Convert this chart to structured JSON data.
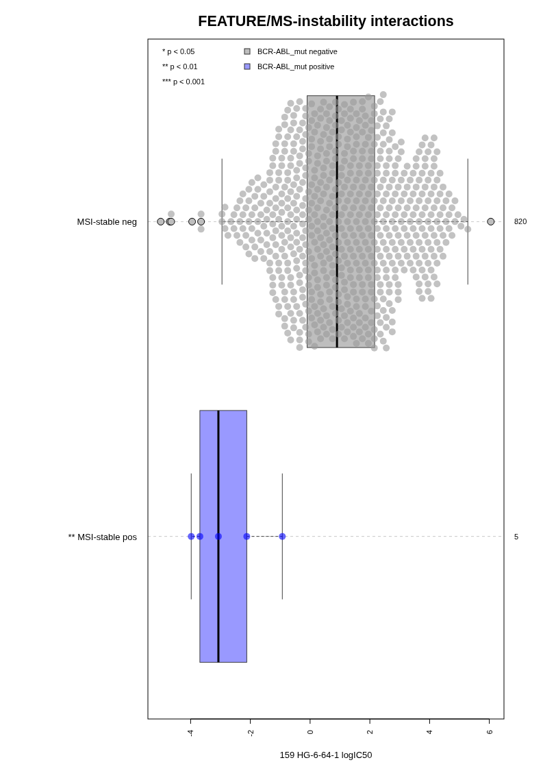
{
  "chart_data": {
    "type": "box",
    "title": "FEATURE/MS-instability interactions",
    "xlabel": "159 HG-6-64-1 logIC50",
    "orientation": "horizontal",
    "categories": [
      "MSI-stable neg",
      "** MSI-stable pos"
    ],
    "y2_categories": [
      "820",
      "5"
    ],
    "xlim": [
      -5.43,
      6.49
    ],
    "xticks": [
      -4,
      -2,
      0,
      2,
      4,
      6
    ],
    "grid": "y",
    "legend": "top left",
    "annotations": [
      "* p < 0.05",
      "** p < 0.01",
      "*** p < 0.001"
    ],
    "series": [
      {
        "name": "BCR-ABL_mut negative",
        "color": "#bebebe",
        "boxes": [
          {
            "low": -2.95,
            "q1": -0.1,
            "median": 0.9,
            "q3": 2.16,
            "high": 5.28,
            "outliers": [
              -5,
              -4.7,
              -4.65,
              -3.95,
              -3.65,
              6.05
            ]
          },
          null
        ]
      },
      {
        "name": "BCR-ABL_mut positive",
        "color": "#9999ff",
        "boxes": [
          null,
          {
            "low": -3.98,
            "q1": -3.69,
            "median": -3.07,
            "q3": -2.12,
            "high": -0.93
          }
        ]
      },
      {
        "type": "scatter",
        "color": "#999999",
        "x": [
          "MSI-stable neg",
          "MSI-stable neg",
          "MSI-stable neg",
          "MSI-stable neg",
          "MSI-stable neg",
          "MSI-stable neg",
          "MSI-stable neg",
          "MSI-stable neg",
          "MSI-stable neg",
          "MSI-stable neg",
          "MSI-stable neg",
          "MSI-stable neg",
          "MSI-stable neg",
          "MSI-stable neg",
          "MSI-stable neg",
          "MSI-stable neg",
          "MSI-stable neg",
          "MSI-stable neg",
          "MSI-stable neg",
          "MSI-stable neg",
          "MSI-stable neg",
          "MSI-stable neg",
          "MSI-stable neg",
          "MSI-stable neg",
          "MSI-stable neg",
          "MSI-stable neg",
          "MSI-stable neg",
          "MSI-stable neg",
          "MSI-stable neg",
          "MSI-stable neg",
          "MSI-stable neg",
          "MSI-stable neg",
          "MSI-stable neg",
          "MSI-stable neg",
          "MSI-stable neg",
          "MSI-stable neg",
          "MSI-stable neg",
          "MSI-stable neg",
          "MSI-stable neg",
          "MSI-stable neg",
          "MSI-stable neg",
          "MSI-stable neg",
          "MSI-stable neg",
          "MSI-stable neg",
          "MSI-stable neg",
          "MSI-stable neg",
          "MSI-stable neg",
          "MSI-stable neg",
          "MSI-stable neg",
          "MSI-stable neg",
          "MSI-stable neg",
          "MSI-stable neg",
          "MSI-stable neg",
          "MSI-stable neg",
          "MSI-stable neg",
          "MSI-stable neg",
          "MSI-stable neg",
          "MSI-stable neg",
          "MSI-stable neg",
          "MSI-stable neg",
          "MSI-stable neg",
          "MSI-stable neg",
          "MSI-stable neg",
          "MSI-stable neg",
          "MSI-stable neg",
          "MSI-stable neg",
          "MSI-stable neg",
          "MSI-stable neg",
          "MSI-stable neg",
          "MSI-stable neg",
          "MSI-stable neg",
          "MSI-stable neg",
          "MSI-stable neg",
          "MSI-stable neg",
          "MSI-stable neg",
          "MSI-stable neg",
          "MSI-stable neg",
          "MSI-stable neg",
          "MSI-stable neg",
          "MSI-stable neg",
          "MSI-stable neg",
          "MSI-stable neg",
          "MSI-stable neg",
          "MSI-stable neg",
          "MSI-stable neg",
          "MSI-stable neg",
          "MSI-stable neg",
          "MSI-stable neg",
          "MSI-stable neg",
          "MSI-stable neg",
          "MSI-stable neg",
          "MSI-stable neg",
          "MSI-stable neg",
          "MSI-stable neg",
          "MSI-stable neg",
          "MSI-stable neg",
          "MSI-stable neg",
          "MSI-stable neg",
          "MSI-stable neg",
          "MSI-stable neg",
          "MSI-stable neg",
          "MSI-stable neg",
          "MSI-stable neg",
          "MSI-stable neg",
          "MSI-stable neg",
          "MSI-stable neg",
          "MSI-stable neg",
          "MSI-stable neg",
          "MSI-stable neg",
          "MSI-stable neg",
          "MSI-stable neg",
          "MSI-stable neg",
          "MSI-stable neg",
          "MSI-stable neg",
          "MSI-stable neg",
          "MSI-stable neg",
          "MSI-stable neg",
          "MSI-stable neg",
          "MSI-stable neg",
          "MSI-stable neg",
          "MSI-stable neg",
          "MSI-stable neg",
          "MSI-stable neg",
          "MSI-stable neg",
          "MSI-stable neg",
          "MSI-stable neg",
          "MSI-stable neg",
          "MSI-stable neg",
          "MSI-stable neg",
          "MSI-stable neg",
          "MSI-stable neg",
          "MSI-stable neg",
          "MSI-stable neg",
          "MSI-stable neg",
          "MSI-stable neg",
          "MSI-stable neg",
          "MSI-stable neg",
          "MSI-stable neg",
          "MSI-stable neg",
          "MSI-stable neg",
          "MSI-stable neg",
          "MSI-stable neg",
          "MSI-stable neg",
          "MSI-stable neg",
          "MSI-stable neg",
          "MSI-stable neg",
          "MSI-stable neg",
          "MSI-stable neg",
          "MSI-stable neg",
          "MSI-stable neg",
          "MSI-stable neg",
          "MSI-stable neg",
          "MSI-stable neg",
          "MSI-stable neg",
          "MSI-stable neg",
          "MSI-stable neg",
          "MSI-stable neg",
          "MSI-stable neg",
          "MSI-stable neg",
          "MSI-stable neg",
          "MSI-stable neg",
          "MSI-stable neg",
          "MSI-stable neg",
          "MSI-stable neg",
          "MSI-stable neg",
          "MSI-stable neg",
          "MSI-stable neg",
          "MSI-stable neg",
          "MSI-stable neg",
          "MSI-stable neg",
          "MSI-stable neg",
          "MSI-stable neg",
          "MSI-stable neg",
          "MSI-stable neg",
          "MSI-stable neg",
          "MSI-stable neg",
          "MSI-stable neg",
          "MSI-stable neg",
          "MSI-stable neg",
          "MSI-stable neg",
          "MSI-stable neg",
          "MSI-stable neg",
          "MSI-stable neg",
          "MSI-stable neg",
          "MSI-stable neg",
          "MSI-stable neg",
          "MSI-stable neg",
          "MSI-stable neg",
          "MSI-stable neg",
          "MSI-stable neg",
          "MSI-stable neg",
          "MSI-stable neg",
          "MSI-stable neg",
          "MSI-stable neg",
          "MSI-stable neg",
          "MSI-stable neg",
          "MSI-stable neg",
          "MSI-stable neg",
          "MSI-stable neg",
          "MSI-stable neg",
          "MSI-stable neg",
          "MSI-stable neg",
          "MSI-stable neg",
          "MSI-stable neg",
          "MSI-stable neg",
          "MSI-stable neg",
          "MSI-stable neg",
          "MSI-stable neg",
          "MSI-stable neg",
          "MSI-stable neg",
          "MSI-stable neg",
          "MSI-stable neg",
          "MSI-stable neg",
          "MSI-stable neg",
          "MSI-stable neg",
          "MSI-stable neg",
          "MSI-stable neg",
          "MSI-stable neg",
          "MSI-stable neg",
          "MSI-stable neg",
          "MSI-stable neg",
          "MSI-stable neg",
          "MSI-stable neg",
          "MSI-stable neg",
          "MSI-stable neg",
          "MSI-stable neg",
          "MSI-stable neg",
          "MSI-stable neg",
          "MSI-stable neg",
          "MSI-stable neg",
          "MSI-stable neg",
          "MSI-stable neg",
          "MSI-stable neg",
          "MSI-stable neg",
          "MSI-stable neg",
          "MSI-stable neg",
          "MSI-stable neg",
          "MSI-stable neg",
          "MSI-stable neg",
          "MSI-stable neg",
          "MSI-stable neg",
          "MSI-stable neg",
          "MSI-stable neg",
          "MSI-stable neg",
          "MSI-stable neg",
          "MSI-stable neg",
          "MSI-stable neg",
          "MSI-stable neg",
          "MSI-stable neg",
          "MSI-stable neg",
          "MSI-stable neg",
          "MSI-stable neg",
          "MSI-stable neg",
          "MSI-stable neg",
          "MSI-stable neg",
          "MSI-stable neg",
          "MSI-stable neg",
          "MSI-stable neg",
          "MSI-stable neg",
          "MSI-stable neg",
          "MSI-stable neg",
          "MSI-stable neg",
          "MSI-stable neg",
          "MSI-stable neg",
          "MSI-stable neg",
          "MSI-stable neg",
          "MSI-stable neg",
          "MSI-stable neg",
          "MSI-stable neg",
          "MSI-stable neg",
          "MSI-stable neg",
          "MSI-stable neg",
          "MSI-stable neg",
          "MSI-stable neg",
          "MSI-stable neg",
          "MSI-stable neg",
          "MSI-stable neg",
          "MSI-stable neg",
          "MSI-stable neg",
          "MSI-stable neg",
          "MSI-stable neg",
          "MSI-stable neg",
          "MSI-stable neg",
          "MSI-stable neg",
          "MSI-stable neg",
          "MSI-stable neg",
          "MSI-stable neg",
          "MSI-stable neg",
          "MSI-stable neg",
          "MSI-stable neg",
          "MSI-stable neg",
          "MSI-stable neg",
          "MSI-stable neg",
          "MSI-stable neg",
          "MSI-stable neg",
          "MSI-stable neg",
          "MSI-stable neg",
          "MSI-stable neg",
          "MSI-stable neg",
          "MSI-stable neg",
          "MSI-stable neg",
          "MSI-stable neg",
          "MSI-stable neg",
          "MSI-stable neg",
          "MSI-stable neg",
          "MSI-stable neg",
          "MSI-stable neg",
          "MSI-stable neg",
          "MSI-stable neg",
          "MSI-stable neg",
          "MSI-stable neg",
          "MSI-stable neg",
          "MSI-stable neg",
          "MSI-stable neg",
          "MSI-stable neg",
          "MSI-stable neg",
          "MSI-stable neg",
          "MSI-stable neg",
          "MSI-stable neg",
          "MSI-stable neg",
          "MSI-stable neg",
          "MSI-stable neg",
          "MSI-stable neg",
          "MSI-stable neg",
          "MSI-stable neg",
          "MSI-stable neg",
          "MSI-stable neg",
          "MSI-stable neg",
          "MSI-stable neg",
          "MSI-stable neg",
          "MSI-stable neg",
          "MSI-stable neg",
          "MSI-stable neg",
          "MSI-stable neg",
          "MSI-stable neg",
          "MSI-stable neg",
          "MSI-stable neg",
          "MSI-stable neg",
          "MSI-stable neg",
          "MSI-stable neg",
          "MSI-stable neg",
          "MSI-stable neg",
          "MSI-stable neg",
          "MSI-stable neg",
          "MSI-stable neg",
          "MSI-stable neg",
          "MSI-stable neg",
          "MSI-stable neg",
          "MSI-stable neg",
          "MSI-stable neg",
          "MSI-stable neg",
          "MSI-stable neg",
          "MSI-stable neg",
          "MSI-stable neg",
          "MSI-stable neg",
          "MSI-stable neg",
          "MSI-stable neg",
          "MSI-stable neg",
          "MSI-stable neg",
          "MSI-stable neg",
          "MSI-stable neg",
          "MSI-stable neg",
          "MSI-stable neg",
          "MSI-stable neg",
          "MSI-stable neg",
          "MSI-stable neg",
          "MSI-stable neg",
          "MSI-stable neg",
          "MSI-stable neg",
          "MSI-stable neg",
          "MSI-stable neg",
          "MSI-stable neg",
          "MSI-stable neg",
          "MSI-stable neg",
          "MSI-stable neg",
          "MSI-stable neg",
          "MSI-stable neg",
          "MSI-stable neg",
          "MSI-stable neg",
          "MSI-stable neg",
          "MSI-stable neg",
          "MSI-stable neg",
          "MSI-stable neg",
          "MSI-stable neg",
          "MSI-stable neg",
          "MSI-stable neg",
          "MSI-stable neg",
          "MSI-stable neg",
          "MSI-stable neg",
          "MSI-stable neg",
          "MSI-stable neg",
          "MSI-stable neg",
          "MSI-stable neg",
          "MSI-stable neg",
          "MSI-stable neg",
          "MSI-stable neg",
          "MSI-stable neg",
          "MSI-stable neg",
          "MSI-stable neg",
          "MSI-stable neg",
          "MSI-stable neg",
          "MSI-stable neg",
          "MSI-stable neg",
          "MSI-stable neg",
          "MSI-stable neg",
          "MSI-stable neg",
          "MSI-stable neg",
          "MSI-stable neg",
          "MSI-stable neg",
          "MSI-stable neg",
          "MSI-stable neg",
          "MSI-stable neg",
          "MSI-stable neg",
          "MSI-stable neg",
          "MSI-stable neg",
          "MSI-stable neg",
          "MSI-stable neg",
          "MSI-stable neg",
          "MSI-stable neg",
          "MSI-stable neg",
          "MSI-stable neg",
          "MSI-stable neg",
          "MSI-stable neg",
          "MSI-stable neg",
          "MSI-stable neg",
          "MSI-stable neg",
          "MSI-stable neg",
          "MSI-stable neg",
          "MSI-stable neg",
          "MSI-stable neg",
          "MSI-stable neg",
          "MSI-stable neg",
          "MSI-stable neg",
          "MSI-stable neg",
          "MSI-stable neg",
          "MSI-stable neg",
          "MSI-stable neg",
          "MSI-stable neg",
          "MSI-stable neg",
          "MSI-stable neg",
          "MSI-stable neg",
          "MSI-stable neg",
          "MSI-stable neg",
          "MSI-stable neg",
          "MSI-stable neg",
          "MSI-stable neg",
          "MSI-stable neg",
          "MSI-stable neg",
          "MSI-stable neg",
          "MSI-stable neg",
          "MSI-stable neg",
          "MSI-stable neg",
          "MSI-stable neg",
          "MSI-stable neg",
          "MSI-stable neg",
          "MSI-stable neg",
          "MSI-stable neg",
          "MSI-stable neg",
          "MSI-stable neg",
          "MSI-stable neg",
          "MSI-stable neg",
          "MSI-stable neg",
          "MSI-stable neg",
          "MSI-stable neg",
          "MSI-stable neg",
          "MSI-stable neg",
          "MSI-stable neg",
          "MSI-stable neg",
          "MSI-stable neg",
          "MSI-stable neg",
          "MSI-stable neg",
          "MSI-stable neg",
          "MSI-stable neg",
          "MSI-stable neg",
          "MSI-stable neg",
          "MSI-stable neg",
          "MSI-stable neg",
          "MSI-stable neg",
          "MSI-stable neg",
          "MSI-stable neg",
          "MSI-stable neg",
          "MSI-stable neg",
          "MSI-stable neg",
          "MSI-stable neg",
          "MSI-stable neg",
          "MSI-stable neg",
          "MSI-stable neg",
          "MSI-stable neg",
          "MSI-stable neg",
          "MSI-stable neg",
          "MSI-stable neg",
          "MSI-stable neg",
          "MSI-stable neg",
          "MSI-stable neg",
          "MSI-stable neg",
          "MSI-stable neg",
          "MSI-stable neg",
          "MSI-stable neg",
          "MSI-stable neg",
          "MSI-stable neg",
          "MSI-stable neg",
          "MSI-stable neg",
          "MSI-stable neg",
          "MSI-stable neg",
          "MSI-stable neg",
          "MSI-stable neg",
          "MSI-stable neg",
          "MSI-stable neg",
          "MSI-stable neg",
          "MSI-stable neg",
          "MSI-stable neg",
          "MSI-stable neg",
          "MSI-stable neg",
          "MSI-stable neg",
          "MSI-stable neg",
          "MSI-stable neg",
          "MSI-stable neg",
          "MSI-stable neg",
          "MSI-stable neg",
          "MSI-stable neg",
          "MSI-stable neg",
          "MSI-stable neg",
          "MSI-stable neg",
          "MSI-stable neg",
          "MSI-stable neg",
          "MSI-stable neg",
          "MSI-stable neg",
          "MSI-stable neg",
          "MSI-stable neg",
          "MSI-stable neg",
          "MSI-stable neg",
          "MSI-stable neg",
          "MSI-stable neg",
          "MSI-stable neg",
          "MSI-stable neg",
          "MSI-stable neg",
          "MSI-stable neg",
          "MSI-stable neg",
          "MSI-stable neg",
          "MSI-stable neg",
          "MSI-stable neg",
          "MSI-stable neg",
          "MSI-stable neg",
          "MSI-stable neg",
          "MSI-stable neg",
          "MSI-stable neg",
          "MSI-stable neg",
          "MSI-stable neg",
          "MSI-stable neg",
          "MSI-stable neg",
          "MSI-stable neg",
          "MSI-stable neg",
          "MSI-stable neg",
          "MSI-stable neg",
          "MSI-stable neg",
          "MSI-stable neg",
          "MSI-stable neg",
          "MSI-stable neg",
          "MSI-stable neg",
          "MSI-stable neg",
          "MSI-stable neg",
          "MSI-stable neg",
          "MSI-stable neg",
          "MSI-stable neg",
          "MSI-stable neg",
          "MSI-stable neg",
          "MSI-stable neg",
          "MSI-stable neg",
          "MSI-stable neg",
          "MSI-stable neg",
          "MSI-stable neg",
          "MSI-stable neg",
          "MSI-stable neg",
          "MSI-stable neg",
          "MSI-stable neg",
          "MSI-stable neg",
          "MSI-stable neg",
          "MSI-stable neg",
          "MSI-stable neg",
          "MSI-stable neg",
          "MSI-stable neg",
          "MSI-stable neg",
          "MSI-stable neg",
          "MSI-stable neg",
          "MSI-stable neg",
          "MSI-stable neg",
          "MSI-stable neg",
          "MSI-stable neg",
          "MSI-stable neg",
          "MSI-stable neg",
          "MSI-stable neg",
          "MSI-stable neg",
          "MSI-stable neg",
          "MSI-stable neg",
          "MSI-stable neg",
          "MSI-stable neg",
          "MSI-stable neg",
          "MSI-stable neg",
          "MSI-stable neg",
          "MSI-stable neg",
          "MSI-stable neg",
          "MSI-stable neg",
          "MSI-stable neg",
          "MSI-stable neg",
          "MSI-stable neg",
          "MSI-stable neg",
          "MSI-stable neg",
          "MSI-stable neg",
          "MSI-stable neg",
          "MSI-stable neg",
          "MSI-stable neg",
          "MSI-stable neg",
          "MSI-stable neg",
          "MSI-stable neg",
          "MSI-stable neg",
          "MSI-stable neg",
          "MSI-stable neg",
          "MSI-stable neg",
          "MSI-stable neg",
          "MSI-stable neg",
          "MSI-stable neg",
          "MSI-stable neg",
          "MSI-stable neg",
          "MSI-stable neg",
          "MSI-stable neg",
          "MSI-stable neg",
          "MSI-stable neg",
          "MSI-stable neg",
          "MSI-stable neg",
          "MSI-stable neg",
          "MSI-stable neg",
          "MSI-stable neg",
          "MSI-stable neg",
          "MSI-stable neg",
          "MSI-stable neg",
          "MSI-stable neg",
          "MSI-stable neg",
          "MSI-stable neg",
          "MSI-stable neg",
          "MSI-stable neg",
          "MSI-stable neg",
          "MSI-stable neg",
          "MSI-stable neg",
          "MSI-stable neg",
          "MSI-stable neg",
          "MSI-stable neg",
          "MSI-stable neg",
          "MSI-stable neg",
          "MSI-stable neg",
          "MSI-stable neg",
          "MSI-stable neg",
          "MSI-stable neg",
          "MSI-stable neg",
          "MSI-stable neg",
          "MSI-stable neg",
          "MSI-stable neg",
          "MSI-stable neg",
          "MSI-stable neg",
          "MSI-stable neg",
          "MSI-stable neg",
          "MSI-stable neg",
          "MSI-stable neg",
          "MSI-stable neg",
          "MSI-stable neg"
        ],
        "values": [
          -4.65,
          -3.65,
          -3.65,
          -2.95,
          -2.95,
          -2.85,
          -2.85,
          -2.75,
          -2.65,
          -2.55,
          -2.55,
          -2.45,
          -2.45,
          -2.35,
          -2.35,
          -2.35,
          -2.25,
          -2.25,
          -2.25,
          -2.15,
          -2.15,
          -2.15,
          -2.05,
          -2.05,
          -2.05,
          -2.05,
          -1.95,
          -1.95,
          -1.95,
          -1.95,
          -1.85,
          -1.85,
          -1.85,
          -1.85,
          -1.75,
          -1.75,
          -1.75,
          -1.75,
          -1.65,
          -1.65,
          -1.65,
          -1.65,
          -1.55,
          -1.55,
          -1.55,
          -1.55,
          -1.45,
          -1.45,
          -1.45,
          -1.45,
          -1.35,
          -1.35,
          -1.35,
          -1.35,
          -1.35,
          -1.35,
          -1.35,
          -1.25,
          -1.25,
          -1.25,
          -1.25,
          -1.25,
          -1.25,
          -1.25,
          -1.25,
          -1.15,
          -1.15,
          -1.15,
          -1.15,
          -1.15,
          -1.15,
          -1.15,
          -1.15,
          -1.15,
          -1.05,
          -1.05,
          -1.05,
          -1.05,
          -1.05,
          -1.05,
          -1.05,
          -1.05,
          -1.05,
          -0.95,
          -0.95,
          -0.95,
          -0.95,
          -0.95,
          -0.95,
          -0.95,
          -0.95,
          -0.95,
          -0.95,
          -0.85,
          -0.85,
          -0.85,
          -0.85,
          -0.85,
          -0.85,
          -0.85,
          -0.85,
          -0.85,
          -0.85,
          -0.85,
          -0.75,
          -0.75,
          -0.75,
          -0.75,
          -0.75,
          -0.75,
          -0.75,
          -0.75,
          -0.75,
          -0.75,
          -0.75,
          -0.75,
          -0.65,
          -0.65,
          -0.65,
          -0.65,
          -0.65,
          -0.65,
          -0.65,
          -0.65,
          -0.65,
          -0.65,
          -0.65,
          -0.65,
          -0.55,
          -0.55,
          -0.55,
          -0.55,
          -0.55,
          -0.55,
          -0.55,
          -0.55,
          -0.55,
          -0.55,
          -0.55,
          -0.55,
          -0.45,
          -0.45,
          -0.45,
          -0.45,
          -0.45,
          -0.45,
          -0.45,
          -0.45,
          -0.45,
          -0.45,
          -0.45,
          -0.45,
          -0.35,
          -0.35,
          -0.35,
          -0.35,
          -0.35,
          -0.35,
          -0.35,
          -0.35,
          -0.35,
          -0.35,
          -0.35,
          -0.35,
          -0.25,
          -0.25,
          -0.25,
          -0.25,
          -0.25,
          -0.25,
          -0.25,
          -0.25,
          -0.25,
          -0.25,
          -0.25,
          -0.25,
          -0.15,
          -0.15,
          -0.15,
          -0.15,
          -0.15,
          -0.15,
          -0.15,
          -0.15,
          -0.15,
          -0.15,
          -0.15,
          -0.15,
          -0.05,
          -0.05,
          -0.05,
          -0.05,
          -0.05,
          -0.05,
          -0.05,
          -0.05,
          -0.05,
          -0.05,
          -0.05,
          -0.05,
          0.05,
          0.05,
          0.05,
          0.05,
          0.05,
          0.05,
          0.05,
          0.05,
          0.05,
          0.05,
          0.05,
          0.05,
          0.15,
          0.15,
          0.15,
          0.15,
          0.15,
          0.15,
          0.15,
          0.15,
          0.15,
          0.15,
          0.15,
          0.15,
          0.25,
          0.25,
          0.25,
          0.25,
          0.25,
          0.25,
          0.25,
          0.25,
          0.25,
          0.25,
          0.25,
          0.25,
          0.35,
          0.35,
          0.35,
          0.35,
          0.35,
          0.35,
          0.35,
          0.35,
          0.35,
          0.35,
          0.35,
          0.35,
          0.45,
          0.45,
          0.45,
          0.45,
          0.45,
          0.45,
          0.45,
          0.45,
          0.45,
          0.45,
          0.45,
          0.45,
          0.55,
          0.55,
          0.55,
          0.55,
          0.55,
          0.55,
          0.55,
          0.55,
          0.55,
          0.55,
          0.55,
          0.55,
          0.65,
          0.65,
          0.65,
          0.65,
          0.65,
          0.65,
          0.65,
          0.65,
          0.65,
          0.65,
          0.65,
          0.65,
          0.75,
          0.75,
          0.75,
          0.75,
          0.75,
          0.75,
          0.75,
          0.75,
          0.75,
          0.75,
          0.75,
          0.75,
          0.85,
          0.85,
          0.85,
          0.85,
          0.85,
          0.85,
          0.85,
          0.85,
          0.85,
          0.85,
          0.85,
          0.85,
          0.95,
          0.95,
          0.95,
          0.95,
          0.95,
          0.95,
          0.95,
          0.95,
          0.95,
          0.95,
          0.95,
          0.95,
          1.05,
          1.05,
          1.05,
          1.05,
          1.05,
          1.05,
          1.05,
          1.05,
          1.05,
          1.05,
          1.05,
          1.05,
          1.15,
          1.15,
          1.15,
          1.15,
          1.15,
          1.15,
          1.15,
          1.15,
          1.15,
          1.15,
          1.15,
          1.15,
          1.25,
          1.25,
          1.25,
          1.25,
          1.25,
          1.25,
          1.25,
          1.25,
          1.25,
          1.25,
          1.25,
          1.25,
          1.35,
          1.35,
          1.35,
          1.35,
          1.35,
          1.35,
          1.35,
          1.35,
          1.35,
          1.35,
          1.35,
          1.35,
          1.45,
          1.45,
          1.45,
          1.45,
          1.45,
          1.45,
          1.45,
          1.45,
          1.45,
          1.45,
          1.45,
          1.45,
          1.55,
          1.55,
          1.55,
          1.55,
          1.55,
          1.55,
          1.55,
          1.55,
          1.55,
          1.55,
          1.55,
          1.55,
          1.65,
          1.65,
          1.65,
          1.65,
          1.65,
          1.65,
          1.65,
          1.65,
          1.65,
          1.65,
          1.65,
          1.65,
          1.75,
          1.75,
          1.75,
          1.75,
          1.75,
          1.75,
          1.75,
          1.75,
          1.75,
          1.75,
          1.75,
          1.75,
          1.85,
          1.85,
          1.85,
          1.85,
          1.85,
          1.85,
          1.85,
          1.85,
          1.85,
          1.85,
          1.85,
          1.85,
          1.95,
          1.95,
          1.95,
          1.95,
          1.95,
          1.95,
          1.95,
          1.95,
          1.95,
          1.95,
          1.95,
          1.95,
          2.05,
          2.05,
          2.05,
          2.05,
          2.05,
          2.05,
          2.05,
          2.05,
          2.05,
          2.05,
          2.05,
          2.05,
          2.15,
          2.15,
          2.15,
          2.15,
          2.15,
          2.15,
          2.15,
          2.15,
          2.15,
          2.15,
          2.15,
          2.15,
          2.25,
          2.25,
          2.25,
          2.25,
          2.25,
          2.25,
          2.25,
          2.25,
          2.25,
          2.25,
          2.25,
          2.25,
          2.35,
          2.35,
          2.35,
          2.35,
          2.35,
          2.35,
          2.35,
          2.35,
          2.35,
          2.35,
          2.35,
          2.35,
          2.45,
          2.45,
          2.45,
          2.45,
          2.45,
          2.45,
          2.45,
          2.45,
          2.45,
          2.45,
          2.45,
          2.45,
          2.55,
          2.55,
          2.55,
          2.55,
          2.55,
          2.55,
          2.55,
          2.55,
          2.55,
          2.55,
          2.55,
          2.55,
          2.65,
          2.65,
          2.65,
          2.65,
          2.65,
          2.65,
          2.65,
          2.65,
          2.65,
          2.65,
          2.65,
          2.75,
          2.75,
          2.75,
          2.75,
          2.75,
          2.75,
          2.75,
          2.75,
          2.75,
          2.75,
          2.85,
          2.85,
          2.85,
          2.85,
          2.85,
          2.85,
          2.85,
          2.85,
          2.85,
          2.95,
          2.95,
          2.95,
          2.95,
          2.95,
          2.95,
          2.95,
          2.95,
          3.05,
          3.05,
          3.05,
          3.05,
          3.05,
          3.05,
          3.05,
          3.15,
          3.15,
          3.15,
          3.15,
          3.15,
          3.15,
          3.25,
          3.25,
          3.25,
          3.25,
          3.25,
          3.35,
          3.35,
          3.35,
          3.35,
          3.35,
          3.45,
          3.45,
          3.45,
          3.45,
          3.45,
          3.45,
          3.55,
          3.55,
          3.55,
          3.55,
          3.55,
          3.55,
          3.55,
          3.65,
          3.65,
          3.65,
          3.65,
          3.65,
          3.65,
          3.65,
          3.65,
          3.75,
          3.75,
          3.75,
          3.75,
          3.75,
          3.75,
          3.75,
          3.75,
          3.85,
          3.85,
          3.85,
          3.85,
          3.85,
          3.85,
          3.85,
          3.85,
          3.95,
          3.95,
          3.95,
          3.95,
          3.95,
          3.95,
          3.95,
          3.95,
          4.05,
          4.05,
          4.05,
          4.05,
          4.05,
          4.05,
          4.05,
          4.05,
          4.15,
          4.15,
          4.15,
          4.15,
          4.15,
          4.15,
          4.15,
          4.15,
          4.25,
          4.25,
          4.25,
          4.25,
          4.25,
          4.25,
          4.25,
          4.35,
          4.35,
          4.35,
          4.35,
          4.35,
          4.45,
          4.45,
          4.45,
          4.45,
          4.55,
          4.55,
          4.55,
          4.65,
          4.65,
          4.65,
          4.75,
          4.75,
          4.85,
          4.85,
          4.95,
          5.05,
          5.15,
          5.28
        ]
      },
      {
        "type": "scatter",
        "color": "#0000ff",
        "x": [
          "** MSI-stable pos",
          "** MSI-stable pos",
          "** MSI-stable pos",
          "** MSI-stable pos",
          "** MSI-stable pos"
        ],
        "values": [
          -3.98,
          -3.69,
          -3.07,
          -2.12,
          -0.93
        ]
      }
    ]
  }
}
